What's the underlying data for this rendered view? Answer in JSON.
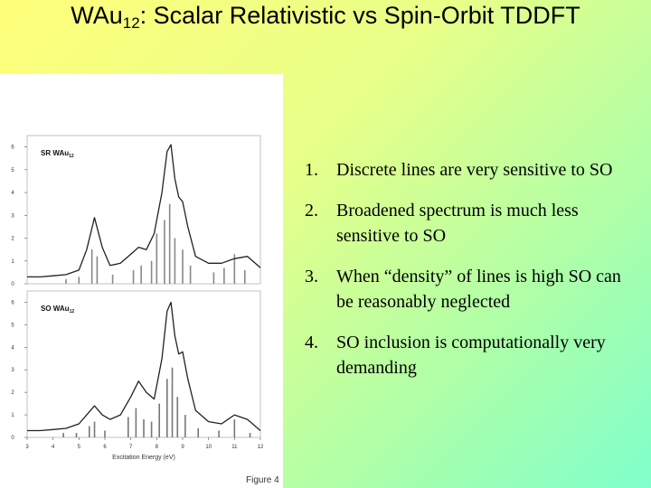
{
  "title": {
    "main": "WAu",
    "sub": "12",
    "rest": ": Scalar Relativistic vs Spin-Orbit TDDFT"
  },
  "items": [
    {
      "marker": "1.",
      "text": "Discrete lines are very sensitive to SO"
    },
    {
      "marker": "2.",
      "text": "Broadened spectrum is much less sensitive to SO"
    },
    {
      "marker": "3.",
      "text": "When “density” of lines is high SO can be reasonably neglected"
    },
    {
      "marker": "4.",
      "text": "SO inclusion is computationally very  demanding"
    }
  ],
  "caption": "Figure 4",
  "chart_data": [
    {
      "type": "line",
      "label": "SR  WAu",
      "label_sub": "12",
      "x": [
        3,
        3.5,
        4,
        4.5,
        5,
        5.3,
        5.6,
        5.9,
        6.2,
        6.6,
        7,
        7.3,
        7.6,
        7.9,
        8.2,
        8.4,
        8.55,
        8.7,
        8.85,
        9,
        9.2,
        9.5,
        10,
        10.5,
        11,
        11.5,
        12
      ],
      "series": [
        {
          "color": "#222222",
          "values": [
            0.3,
            0.3,
            0.35,
            0.4,
            0.6,
            1.5,
            2.9,
            1.6,
            0.8,
            0.9,
            1.3,
            1.6,
            1.5,
            2.2,
            4.0,
            5.8,
            6.1,
            4.6,
            3.8,
            3.6,
            2.5,
            1.2,
            0.9,
            0.9,
            1.1,
            1.2,
            0.7
          ]
        }
      ],
      "sticks": {
        "color": "#888888",
        "x": [
          4.5,
          5.0,
          5.5,
          5.7,
          6.3,
          7.1,
          7.4,
          7.8,
          8.0,
          8.3,
          8.5,
          8.7,
          9.0,
          9.3,
          10.2,
          10.6,
          11.0,
          11.4
        ],
        "values": [
          0.2,
          0.3,
          1.5,
          1.2,
          0.4,
          0.6,
          0.8,
          1.0,
          2.2,
          2.8,
          3.5,
          2.0,
          1.5,
          0.8,
          0.5,
          0.7,
          1.3,
          0.6
        ]
      },
      "xlim": [
        3,
        12
      ],
      "ylim": [
        0,
        6.5
      ],
      "yticks": [
        0,
        1,
        2,
        3,
        4,
        5,
        6
      ]
    },
    {
      "type": "line",
      "label": "SO  WAu",
      "label_sub": "12",
      "xlabel": "Excitation Energy (eV)",
      "x": [
        3,
        3.5,
        4,
        4.5,
        5,
        5.3,
        5.6,
        5.9,
        6.2,
        6.6,
        7,
        7.3,
        7.6,
        7.9,
        8.2,
        8.4,
        8.55,
        8.7,
        8.85,
        9,
        9.2,
        9.5,
        10,
        10.5,
        11,
        11.5,
        12
      ],
      "series": [
        {
          "color": "#222222",
          "values": [
            0.3,
            0.3,
            0.35,
            0.4,
            0.6,
            1.0,
            1.4,
            1.0,
            0.8,
            1.0,
            1.8,
            2.5,
            2.0,
            1.7,
            3.5,
            5.6,
            6.0,
            4.5,
            3.7,
            3.8,
            2.6,
            1.2,
            0.7,
            0.6,
            1.0,
            0.8,
            0.3
          ]
        }
      ],
      "sticks": {
        "color": "#777777",
        "x": [
          4.4,
          4.9,
          5.4,
          5.6,
          6.0,
          6.9,
          7.2,
          7.5,
          7.8,
          8.1,
          8.4,
          8.6,
          8.8,
          9.1,
          9.6,
          10.4,
          11.0,
          11.6
        ],
        "values": [
          0.2,
          0.2,
          0.5,
          0.7,
          0.3,
          0.9,
          1.3,
          0.8,
          0.7,
          1.5,
          2.6,
          3.1,
          1.8,
          1.0,
          0.4,
          0.3,
          0.8,
          0.2
        ]
      },
      "xlim": [
        3,
        12
      ],
      "ylim": [
        0,
        6.5
      ],
      "yticks": [
        0,
        1,
        2,
        3,
        4,
        5,
        6
      ],
      "xticks": [
        3,
        4,
        5,
        6,
        7,
        8,
        9,
        10,
        11,
        12
      ]
    }
  ]
}
